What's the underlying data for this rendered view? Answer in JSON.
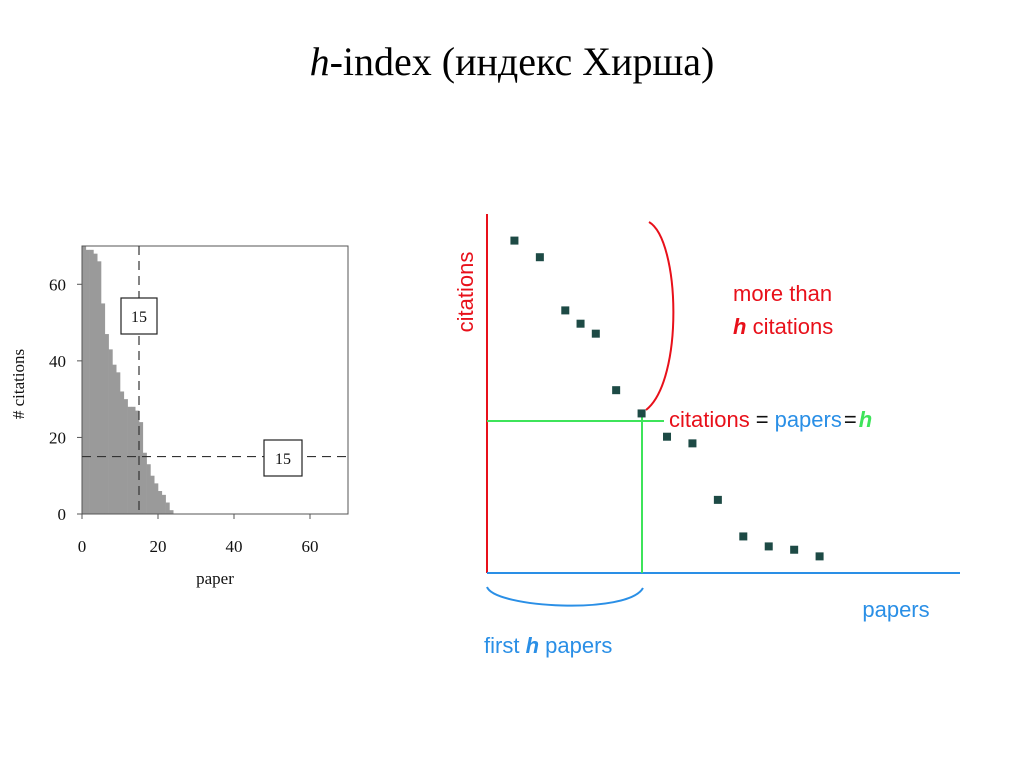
{
  "title": {
    "italic": "h",
    "rest": "-index (индекс Хирша)"
  },
  "colors": {
    "bars": "#9a9a9a",
    "red": "#e8101a",
    "green": "#3ee45a",
    "blue": "#2a8fe6",
    "dots": "#1d4a45"
  },
  "chart_data": [
    {
      "type": "bar",
      "xlabel": "paper",
      "ylabel": "# citations",
      "xlim": [
        0,
        70
      ],
      "ylim": [
        0,
        70
      ],
      "x_ticks": [
        "0",
        "20",
        "40",
        "60"
      ],
      "y_ticks": [
        "0",
        "20",
        "40",
        "60"
      ],
      "x_tick_values": [
        0,
        20,
        40,
        60
      ],
      "y_tick_values": [
        0,
        20,
        40,
        60
      ],
      "values": [
        70,
        69,
        69,
        68,
        66,
        55,
        47,
        43,
        39,
        37,
        32,
        30,
        28,
        28,
        27,
        24,
        16,
        13,
        10,
        8,
        6,
        5,
        3,
        1
      ],
      "reference_lines": {
        "vertical_x": 15,
        "horizontal_y": 15
      },
      "annotations": [
        "15",
        "15"
      ]
    },
    {
      "type": "scatter",
      "xlabel": "papers",
      "ylabel": "citations",
      "points": [
        [
          1,
          10
        ],
        [
          2,
          9.5
        ],
        [
          3,
          7.9
        ],
        [
          3.6,
          7.5
        ],
        [
          4.2,
          7.2
        ],
        [
          5,
          5.5
        ],
        [
          6,
          4.8
        ],
        [
          7,
          4.1
        ],
        [
          8,
          3.9
        ],
        [
          9,
          2.2
        ],
        [
          10,
          1.1
        ],
        [
          11,
          0.8
        ],
        [
          12,
          0.7
        ],
        [
          13,
          0.5
        ]
      ],
      "xlim": [
        0,
        18.6
      ],
      "ylim": [
        0,
        10.8
      ],
      "h": 6.3,
      "labels": {
        "more_than_line1": "more than",
        "more_than_h": "h",
        "more_than_rest": " citations",
        "eq_citations": "citations",
        "eq_sign1": "=",
        "eq_papers": "papers",
        "eq_sign2": "=",
        "eq_h": "h",
        "first": "first ",
        "first_h": "h",
        "first_rest": " papers"
      }
    }
  ]
}
